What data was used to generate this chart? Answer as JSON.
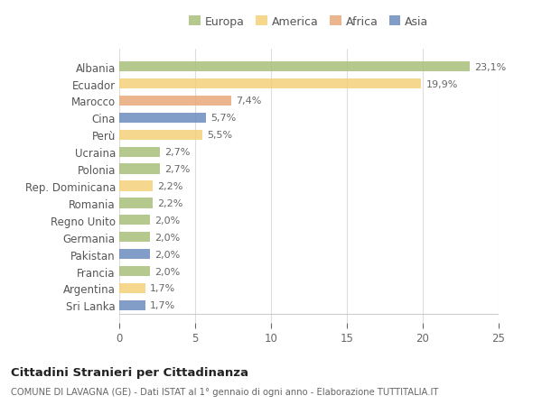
{
  "countries": [
    "Albania",
    "Ecuador",
    "Marocco",
    "Cina",
    "Perù",
    "Ucraina",
    "Polonia",
    "Rep. Dominicana",
    "Romania",
    "Regno Unito",
    "Germania",
    "Pakistan",
    "Francia",
    "Argentina",
    "Sri Lanka"
  ],
  "values": [
    23.1,
    19.9,
    7.4,
    5.7,
    5.5,
    2.7,
    2.7,
    2.2,
    2.2,
    2.0,
    2.0,
    2.0,
    2.0,
    1.7,
    1.7
  ],
  "labels": [
    "23,1%",
    "19,9%",
    "7,4%",
    "5,7%",
    "5,5%",
    "2,7%",
    "2,7%",
    "2,2%",
    "2,2%",
    "2,0%",
    "2,0%",
    "2,0%",
    "2,0%",
    "1,7%",
    "1,7%"
  ],
  "continents": [
    "Europa",
    "America",
    "Africa",
    "Asia",
    "America",
    "Europa",
    "Europa",
    "America",
    "Europa",
    "Europa",
    "Europa",
    "Asia",
    "Europa",
    "America",
    "Asia"
  ],
  "colors": {
    "Europa": "#a8c07a",
    "America": "#f5d07a",
    "Africa": "#e8a87a",
    "Asia": "#6b8cbf"
  },
  "legend_order": [
    "Europa",
    "America",
    "Africa",
    "Asia"
  ],
  "title": "Cittadini Stranieri per Cittadinanza",
  "subtitle": "COMUNE DI LAVAGNA (GE) - Dati ISTAT al 1° gennaio di ogni anno - Elaborazione TUTTITALIA.IT",
  "xlim": [
    0,
    25
  ],
  "xticks": [
    0,
    5,
    10,
    15,
    20,
    25
  ],
  "background_color": "#ffffff",
  "grid_color": "#dddddd"
}
